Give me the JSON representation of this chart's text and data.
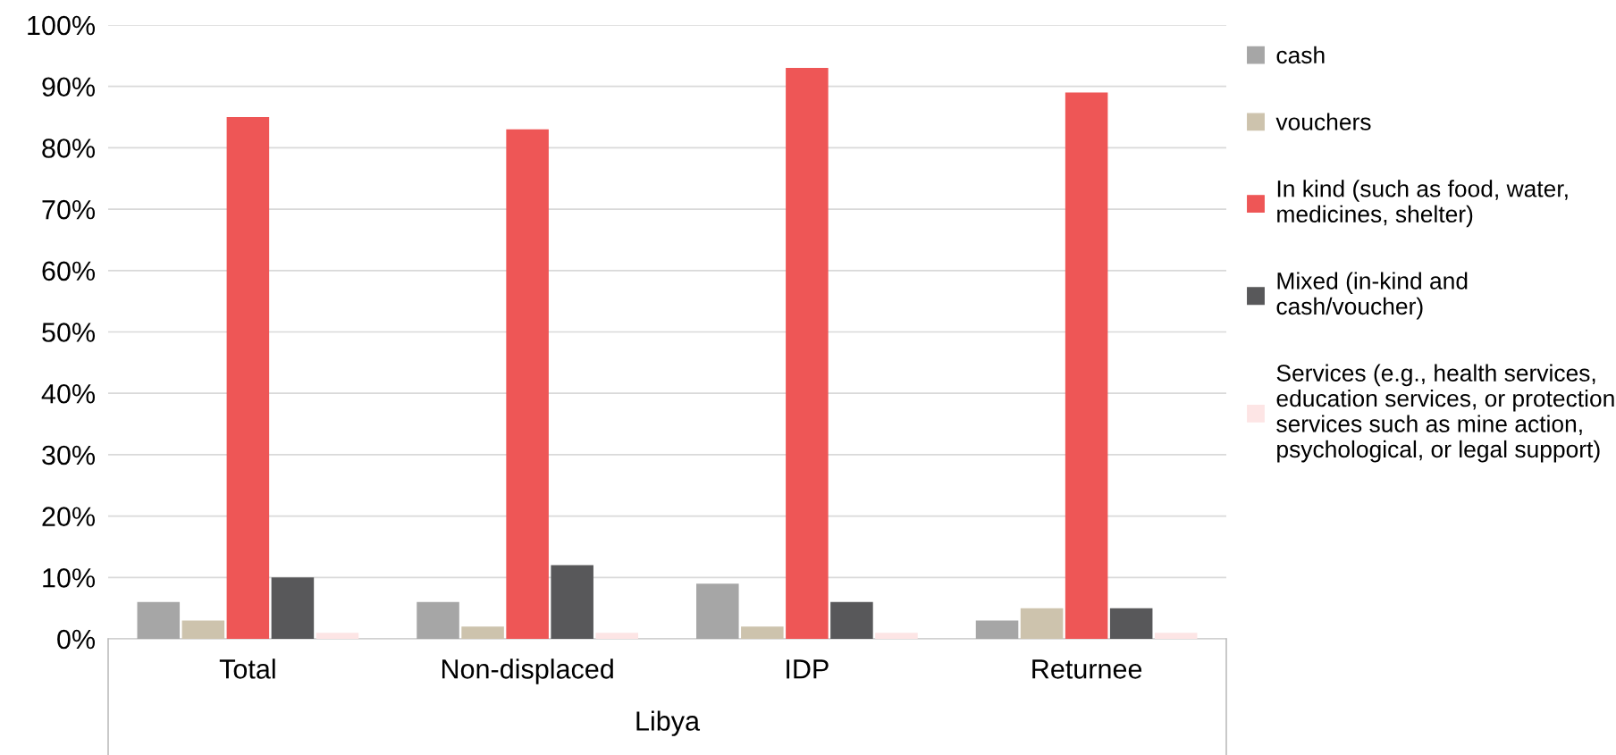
{
  "chart_data": {
    "type": "bar",
    "xlabel": "Libya",
    "categories": [
      "Total",
      "Non-displaced",
      "IDP",
      "Returnee"
    ],
    "series": [
      {
        "name": "cash",
        "color": "#a6a6a6",
        "values": [
          6,
          6,
          9,
          3
        ]
      },
      {
        "name": "vouchers",
        "color": "#cdc3ad",
        "values": [
          3,
          2,
          2,
          5
        ]
      },
      {
        "name": "In kind (such as food, water,\nmedicines, shelter)",
        "color": "#ee5656",
        "values": [
          85,
          83,
          93,
          89
        ]
      },
      {
        "name": "Mixed (in-kind and\ncash/voucher)",
        "color": "#58585a",
        "values": [
          10,
          12,
          6,
          5
        ]
      },
      {
        "name": "Services (e.g., health services,\neducation services, or protection\nservices such as mine action,\npsychological, or legal support)",
        "color": "#fde5e5",
        "values": [
          1,
          1,
          1,
          1
        ]
      }
    ],
    "ylim": [
      0,
      100
    ],
    "yticks": [
      {
        "value": 0,
        "label": "0%"
      },
      {
        "value": 10,
        "label": "10%"
      },
      {
        "value": 20,
        "label": "20%"
      },
      {
        "value": 30,
        "label": "30%"
      },
      {
        "value": 40,
        "label": "40%"
      },
      {
        "value": 50,
        "label": "50%"
      },
      {
        "value": 60,
        "label": "60%"
      },
      {
        "value": 70,
        "label": "70%"
      },
      {
        "value": 80,
        "label": "80%"
      },
      {
        "value": 90,
        "label": "90%"
      },
      {
        "value": 100,
        "label": "100%"
      }
    ],
    "grid": "y",
    "legend": "right"
  }
}
